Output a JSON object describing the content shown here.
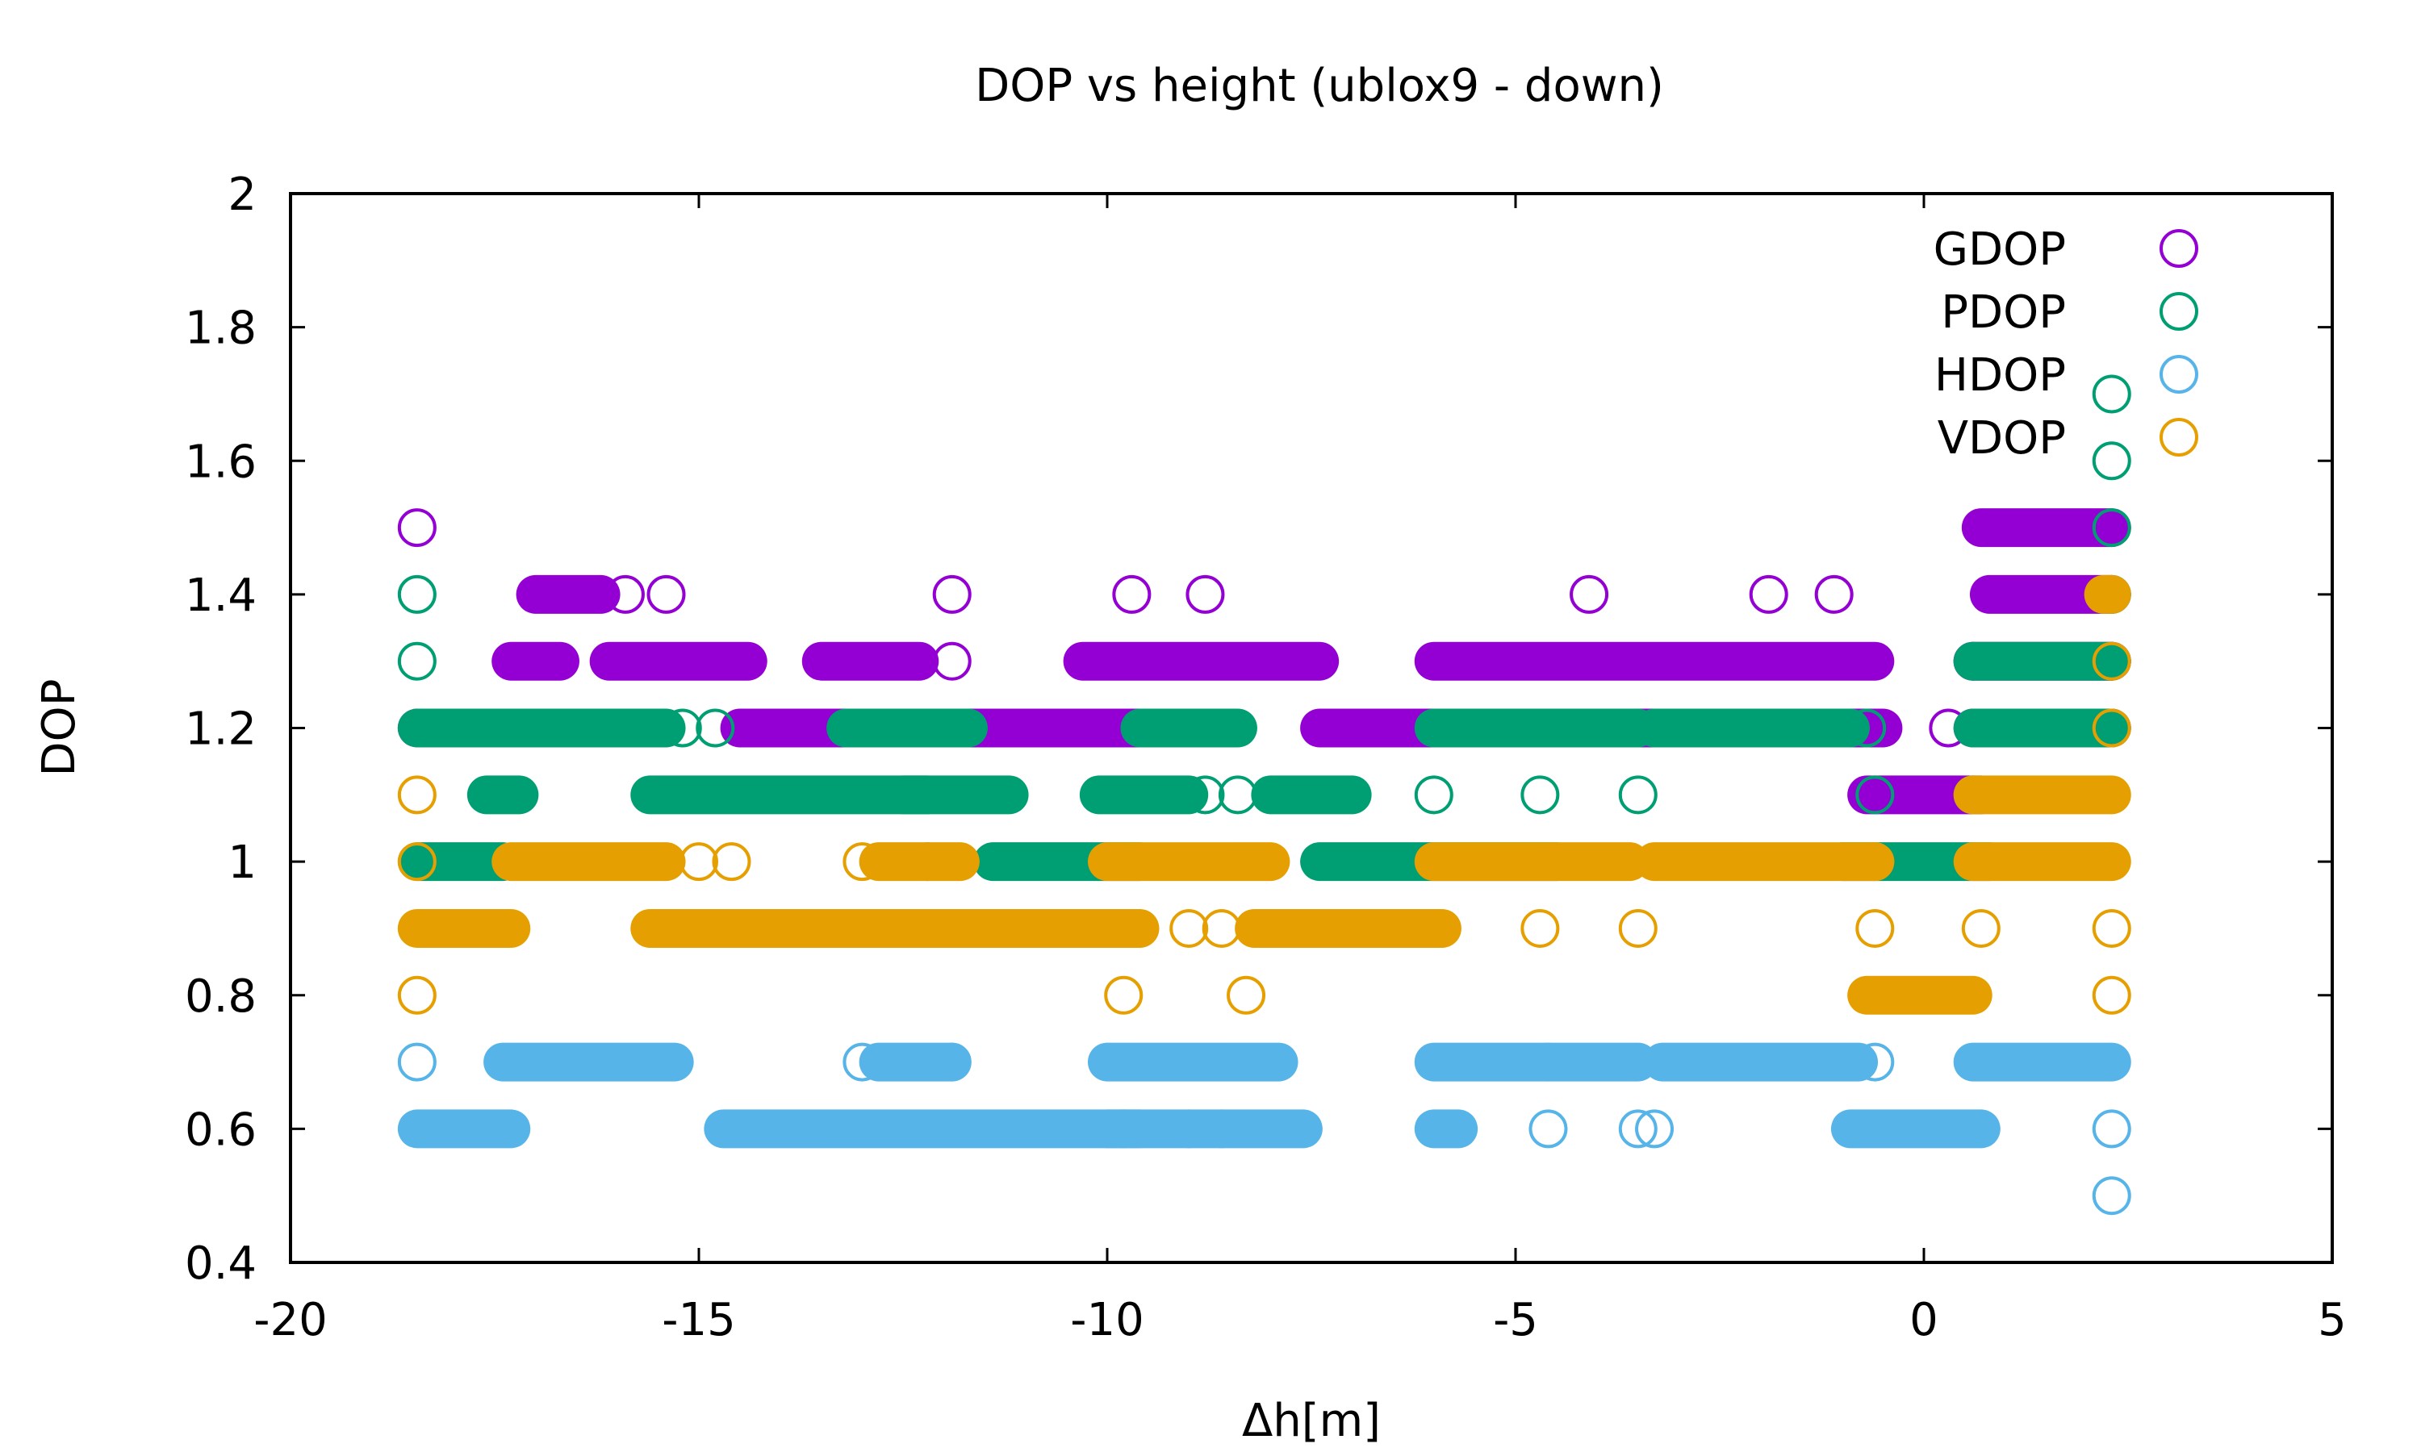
{
  "chart_data": {
    "type": "scatter",
    "title": "DOP vs height (ublox9 - down)",
    "xlabel": "Δh[m]",
    "ylabel": "DOP",
    "xlim": [
      -20,
      5
    ],
    "ylim": [
      0.4,
      2
    ],
    "xticks": [
      "-20",
      "-15",
      "-10",
      "-5",
      "0",
      "5"
    ],
    "yticks": [
      "0.4",
      "0.6",
      "0.8",
      "1",
      "1.2",
      "1.4",
      "1.6",
      "1.8",
      "2"
    ],
    "grid": false,
    "legend_position": "top-right",
    "series": [
      {
        "name": "GDOP",
        "color": "#9400d3",
        "segments": [
          [
            -18.45,
            -15.9,
            1.2
          ],
          [
            -17.3,
            -16.7,
            1.3
          ],
          [
            -17.0,
            -16.2,
            1.4
          ],
          [
            -16.1,
            -14.4,
            1.3
          ],
          [
            -14.5,
            -13.0,
            1.2
          ],
          [
            -13.5,
            -12.3,
            1.3
          ],
          [
            -12.8,
            -9.6,
            1.2
          ],
          [
            -10.3,
            -7.4,
            1.3
          ],
          [
            -7.4,
            -4.0,
            1.2
          ],
          [
            -6.0,
            -0.6,
            1.3
          ],
          [
            -4.0,
            -0.5,
            1.2
          ],
          [
            -0.7,
            0.7,
            1.1
          ],
          [
            0.6,
            2.3,
            1.2
          ],
          [
            0.6,
            2.3,
            1.3
          ],
          [
            0.7,
            2.3,
            1.5
          ],
          [
            0.8,
            2.3,
            1.4
          ]
        ],
        "points": [
          [
            -18.45,
            1.5
          ],
          [
            -15.9,
            1.4
          ],
          [
            -15.4,
            1.4
          ],
          [
            -11.9,
            1.4
          ],
          [
            -9.7,
            1.4
          ],
          [
            -8.8,
            1.4
          ],
          [
            -4.1,
            1.4
          ],
          [
            -1.9,
            1.4
          ],
          [
            -1.1,
            1.4
          ],
          [
            -11.9,
            1.3
          ],
          [
            0.6,
            1.3
          ],
          [
            0.3,
            1.2
          ],
          [
            2.3,
            1.3
          ]
        ]
      },
      {
        "name": "PDOP",
        "color": "#009e73",
        "segments": [
          [
            -18.45,
            -17.7,
            1.2
          ],
          [
            -17.7,
            -15.4,
            1.2
          ],
          [
            -18.45,
            -17.4,
            1.0
          ],
          [
            -17.6,
            -17.2,
            1.1
          ],
          [
            -15.6,
            -12.2,
            1.1
          ],
          [
            -13.2,
            -11.7,
            1.2
          ],
          [
            -12.5,
            -11.2,
            1.1
          ],
          [
            -11.4,
            -9.6,
            1.0
          ],
          [
            -9.6,
            -8.4,
            1.2
          ],
          [
            -10.1,
            -9.0,
            1.1
          ],
          [
            -8.0,
            -7.0,
            1.1
          ],
          [
            -7.4,
            -4.5,
            1.0
          ],
          [
            -6.0,
            -3.5,
            1.2
          ],
          [
            -3.3,
            -0.9,
            1.2
          ],
          [
            -1.0,
            0.8,
            1.0
          ],
          [
            0.6,
            2.3,
            1.3
          ],
          [
            0.6,
            2.3,
            1.2
          ]
        ],
        "points": [
          [
            -18.45,
            1.4
          ],
          [
            -18.45,
            1.3
          ],
          [
            -15.2,
            1.2
          ],
          [
            -14.8,
            1.2
          ],
          [
            -13.0,
            1.2
          ],
          [
            -12.2,
            1.0
          ],
          [
            -11.9,
            1.2
          ],
          [
            -8.8,
            1.1
          ],
          [
            -8.4,
            1.1
          ],
          [
            -6.0,
            1.1
          ],
          [
            -4.7,
            1.1
          ],
          [
            -3.5,
            1.1
          ],
          [
            -0.6,
            1.1
          ],
          [
            -0.7,
            1.2
          ],
          [
            2.3,
            1.5
          ],
          [
            2.3,
            1.4
          ],
          [
            2.3,
            1.6
          ],
          [
            2.3,
            1.7
          ],
          [
            0.6,
            1.1
          ]
        ]
      },
      {
        "name": "HDOP",
        "color": "#56b4e9",
        "segments": [
          [
            -18.45,
            -17.3,
            0.6
          ],
          [
            -17.4,
            -15.3,
            0.7
          ],
          [
            -14.7,
            -9.6,
            0.6
          ],
          [
            -12.8,
            -11.9,
            0.7
          ],
          [
            -10.0,
            -7.6,
            0.6
          ],
          [
            -10.0,
            -7.9,
            0.7
          ],
          [
            -6.0,
            -3.5,
            0.7
          ],
          [
            -3.2,
            -0.8,
            0.7
          ],
          [
            -0.9,
            0.7,
            0.6
          ],
          [
            0.6,
            2.3,
            0.7
          ],
          [
            -6.0,
            -5.7,
            0.6
          ]
        ],
        "points": [
          [
            -18.45,
            0.7
          ],
          [
            -13.0,
            0.7
          ],
          [
            -11.9,
            0.7
          ],
          [
            -9.8,
            0.6
          ],
          [
            -9.0,
            0.6
          ],
          [
            -8.6,
            0.6
          ],
          [
            -4.6,
            0.6
          ],
          [
            -3.5,
            0.6
          ],
          [
            -3.3,
            0.6
          ],
          [
            -4.6,
            0.7
          ],
          [
            -0.6,
            0.7
          ],
          [
            2.3,
            0.6
          ],
          [
            2.3,
            0.5
          ]
        ]
      },
      {
        "name": "VDOP",
        "color": "#e69f00",
        "segments": [
          [
            -18.45,
            -17.3,
            0.9
          ],
          [
            -17.3,
            -15.4,
            1.0
          ],
          [
            -15.6,
            -12.2,
            0.9
          ],
          [
            -12.8,
            -11.8,
            1.0
          ],
          [
            -12.5,
            -9.6,
            0.9
          ],
          [
            -10.0,
            -8.0,
            1.0
          ],
          [
            -8.2,
            -5.9,
            0.9
          ],
          [
            -6.0,
            -3.6,
            1.0
          ],
          [
            -3.3,
            -0.6,
            1.0
          ],
          [
            -0.7,
            0.6,
            0.8
          ],
          [
            0.6,
            2.3,
            1.1
          ],
          [
            0.6,
            2.3,
            1.0
          ],
          [
            2.2,
            2.3,
            1.4
          ]
        ],
        "points": [
          [
            -18.45,
            1.1
          ],
          [
            -18.45,
            1.0
          ],
          [
            -18.45,
            0.8
          ],
          [
            -15.0,
            1.0
          ],
          [
            -14.6,
            1.0
          ],
          [
            -13.0,
            1.0
          ],
          [
            -9.8,
            0.8
          ],
          [
            -8.3,
            0.8
          ],
          [
            -9.0,
            0.9
          ],
          [
            -8.6,
            0.9
          ],
          [
            -4.7,
            0.9
          ],
          [
            -3.5,
            0.9
          ],
          [
            -0.6,
            0.9
          ],
          [
            -0.6,
            1.0
          ],
          [
            0.7,
            0.9
          ],
          [
            2.3,
            1.2
          ],
          [
            2.3,
            1.3
          ],
          [
            2.3,
            0.9
          ],
          [
            2.3,
            0.8
          ]
        ]
      }
    ]
  }
}
